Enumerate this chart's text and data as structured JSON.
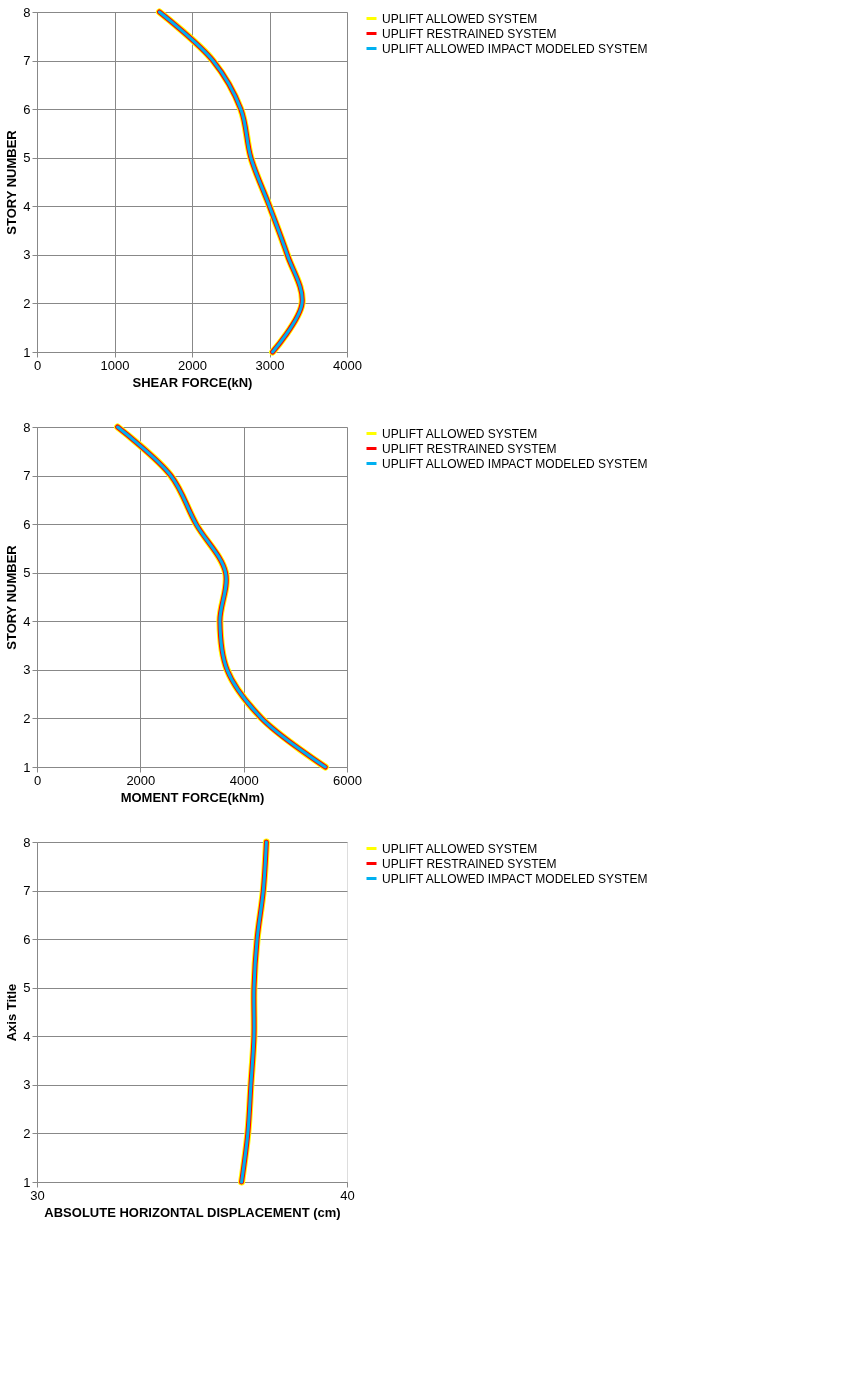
{
  "chart_data": [
    {
      "type": "line",
      "xlabel": "SHEAR FORCE(kN)",
      "ylabel": "STORY NUMBER",
      "xlim": [
        0,
        4000
      ],
      "xticks": [
        0,
        1000,
        2000,
        3000,
        4000
      ],
      "ylim": [
        1,
        8
      ],
      "yticks": [
        1,
        2,
        3,
        4,
        5,
        6,
        7,
        8
      ],
      "grid": true,
      "legend": "right",
      "series": [
        {
          "name": "UPLIFT ALLOWED SYSTEM",
          "color": "#ffff00",
          "x": [
            3040,
            3420,
            3230,
            3000,
            2760,
            2630,
            2270,
            1580
          ],
          "values": [
            1,
            2,
            3,
            4,
            5,
            6,
            7,
            8
          ]
        },
        {
          "name": "UPLIFT RESTRAINED SYSTEM",
          "color": "#ff0000",
          "x": [
            3040,
            3420,
            3230,
            3000,
            2760,
            2630,
            2270,
            1580
          ],
          "values": [
            1,
            2,
            3,
            4,
            5,
            6,
            7,
            8
          ]
        },
        {
          "name": "UPLIFT ALLOWED IMPACT MODELED SYSTEM",
          "color": "#00b0f0",
          "x": [
            3040,
            3420,
            3230,
            3000,
            2760,
            2630,
            2270,
            1580
          ],
          "values": [
            1,
            2,
            3,
            4,
            5,
            6,
            7,
            8
          ]
        }
      ]
    },
    {
      "type": "line",
      "xlabel": "MOMENT FORCE(kNm)",
      "ylabel": "STORY NUMBER",
      "xlim": [
        0,
        6000
      ],
      "xticks": [
        0,
        2000,
        4000,
        6000
      ],
      "ylim": [
        1,
        8
      ],
      "yticks": [
        1,
        2,
        3,
        4,
        5,
        6,
        7,
        8
      ],
      "grid": true,
      "legend": "right",
      "series": [
        {
          "name": "UPLIFT ALLOWED SYSTEM",
          "color": "#ffff00",
          "x": [
            5580,
            4350,
            3680,
            3540,
            3650,
            3080,
            2590,
            1560
          ],
          "values": [
            1,
            2,
            3,
            4,
            5,
            6,
            7,
            8
          ]
        },
        {
          "name": "UPLIFT RESTRAINED SYSTEM",
          "color": "#ff0000",
          "x": [
            5580,
            4350,
            3680,
            3540,
            3650,
            3080,
            2590,
            1560
          ],
          "values": [
            1,
            2,
            3,
            4,
            5,
            6,
            7,
            8
          ]
        },
        {
          "name": "UPLIFT ALLOWED IMPACT MODELED SYSTEM",
          "color": "#00b0f0",
          "x": [
            5580,
            4350,
            3680,
            3540,
            3650,
            3080,
            2590,
            1560
          ],
          "values": [
            1,
            2,
            3,
            4,
            5,
            6,
            7,
            8
          ]
        }
      ]
    },
    {
      "type": "line",
      "xlabel": "ABSOLUTE HORIZONTAL DISPLACEMENT (cm)",
      "ylabel": "Axis Title",
      "xlim": [
        30,
        40
      ],
      "xticks": [
        30,
        40
      ],
      "ylim": [
        1,
        8
      ],
      "yticks": [
        1,
        2,
        3,
        4,
        5,
        6,
        7,
        8
      ],
      "grid": "y",
      "legend": "right",
      "series": [
        {
          "name": "UPLIFT ALLOWED SYSTEM",
          "color": "#ffff00",
          "x": [
            36.6,
            36.8,
            36.9,
            37.0,
            37.0,
            37.1,
            37.3,
            37.4
          ],
          "values": [
            1,
            2,
            3,
            4,
            5,
            6,
            7,
            8
          ]
        },
        {
          "name": "UPLIFT RESTRAINED SYSTEM",
          "color": "#ff0000",
          "x": [
            36.6,
            36.8,
            36.9,
            37.0,
            37.0,
            37.1,
            37.3,
            37.4
          ],
          "values": [
            1,
            2,
            3,
            4,
            5,
            6,
            7,
            8
          ]
        },
        {
          "name": "UPLIFT ALLOWED IMPACT MODELED SYSTEM",
          "color": "#00b0f0",
          "x": [
            36.6,
            36.8,
            36.9,
            37.0,
            37.0,
            37.1,
            37.3,
            37.4
          ],
          "values": [
            1,
            2,
            3,
            4,
            5,
            6,
            7,
            8
          ]
        }
      ]
    }
  ]
}
